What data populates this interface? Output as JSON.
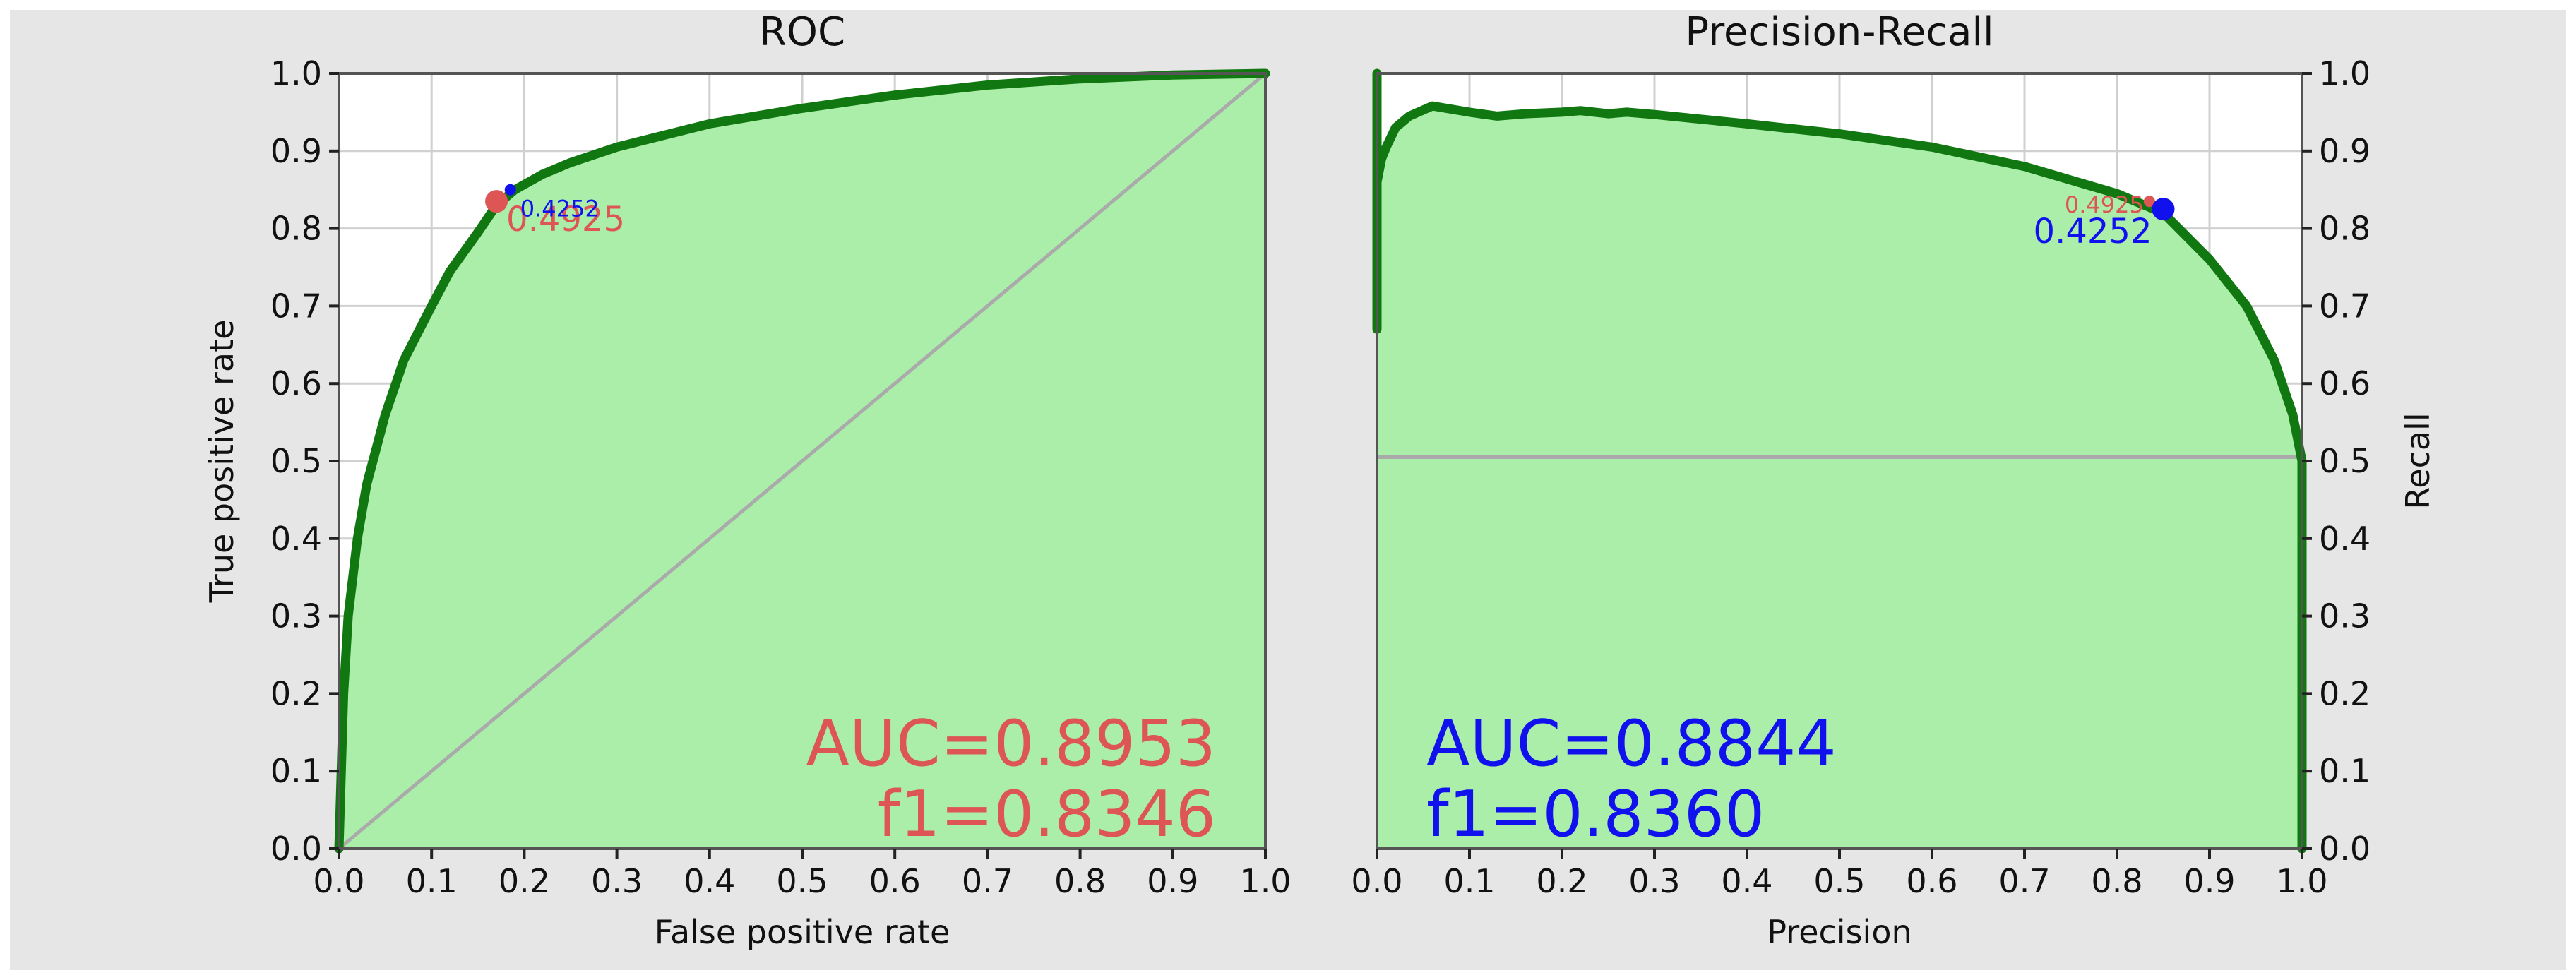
{
  "colors": {
    "figure_bg": "#e6e6e6",
    "plot_bg": "#ffffff",
    "fill": "#aaeeaa",
    "curve": "#117711",
    "grid": "#d0d0d0",
    "reference": "#aaaaaa",
    "roc_marker": "#dd5555",
    "pr_marker": "#1111ee",
    "axis_text": "#111111"
  },
  "chart_data": [
    {
      "type": "area",
      "title": "ROC",
      "xlabel": "False positive rate",
      "ylabel": "True positive rate",
      "xlim": [
        0,
        1
      ],
      "ylim": [
        0,
        1
      ],
      "grid": true,
      "xticks": [
        "0.0",
        "0.1",
        "0.2",
        "0.3",
        "0.4",
        "0.5",
        "0.6",
        "0.7",
        "0.8",
        "0.9",
        "1.0"
      ],
      "yticks": [
        "0.0",
        "0.1",
        "0.2",
        "0.3",
        "0.4",
        "0.5",
        "0.6",
        "0.7",
        "0.8",
        "0.9",
        "1.0"
      ],
      "y_axis_side": "left",
      "series": [
        {
          "x": [
            0.0,
            0.005,
            0.01,
            0.02,
            0.03,
            0.05,
            0.07,
            0.1,
            0.12,
            0.15,
            0.17,
            0.19,
            0.22,
            0.25,
            0.3,
            0.35,
            0.4,
            0.5,
            0.6,
            0.7,
            0.8,
            0.9,
            0.95,
            1.0
          ],
          "y": [
            0.0,
            0.2,
            0.3,
            0.4,
            0.47,
            0.56,
            0.63,
            0.7,
            0.745,
            0.795,
            0.83,
            0.85,
            0.87,
            0.885,
            0.905,
            0.92,
            0.935,
            0.955,
            0.972,
            0.985,
            0.993,
            0.998,
            0.999,
            1.0
          ]
        }
      ],
      "reference_line": {
        "x": [
          0,
          1
        ],
        "y": [
          0,
          1
        ]
      },
      "markers": [
        {
          "x": 0.17,
          "y": 0.835,
          "label": "0.4925",
          "color": "#dd5555",
          "size": "large"
        },
        {
          "x": 0.185,
          "y": 0.85,
          "label": "0.4252",
          "color": "#1111ee",
          "size": "small"
        }
      ],
      "annotations": {
        "auc": "AUC=0.8953",
        "f1": "f1=0.8346",
        "color": "#dd5555",
        "placement": "bottom-right"
      }
    },
    {
      "type": "area",
      "title": "Precision-Recall",
      "xlabel": "Precision",
      "ylabel": "Recall",
      "xlim": [
        0,
        1
      ],
      "ylim": [
        0,
        1
      ],
      "grid": true,
      "xticks": [
        "0.0",
        "0.1",
        "0.2",
        "0.3",
        "0.4",
        "0.5",
        "0.6",
        "0.7",
        "0.8",
        "0.9",
        "1.0"
      ],
      "yticks": [
        "0.0",
        "0.1",
        "0.2",
        "0.3",
        "0.4",
        "0.5",
        "0.6",
        "0.7",
        "0.8",
        "0.9",
        "1.0"
      ],
      "y_axis_side": "right",
      "series": [
        {
          "x": [
            0.0,
            0.0,
            0.0,
            0.005,
            0.01,
            0.02,
            0.035,
            0.06,
            0.1,
            0.13,
            0.16,
            0.2,
            0.22,
            0.25,
            0.27,
            0.3,
            0.4,
            0.5,
            0.6,
            0.7,
            0.8,
            0.85,
            0.9,
            0.94,
            0.97,
            0.99,
            1.0,
            1.0
          ],
          "y": [
            0.67,
            1.0,
            0.86,
            0.89,
            0.905,
            0.93,
            0.945,
            0.958,
            0.95,
            0.945,
            0.948,
            0.95,
            0.952,
            0.948,
            0.95,
            0.947,
            0.935,
            0.922,
            0.905,
            0.88,
            0.845,
            0.82,
            0.76,
            0.7,
            0.63,
            0.56,
            0.5,
            0.0
          ]
        }
      ],
      "reference_line": {
        "x": [
          0,
          1
        ],
        "y": [
          0.505,
          0.505
        ]
      },
      "markers": [
        {
          "x": 0.835,
          "y": 0.835,
          "label": "0.4925",
          "color": "#dd5555",
          "size": "small"
        },
        {
          "x": 0.85,
          "y": 0.825,
          "label": "0.4252",
          "color": "#1111ee",
          "size": "large"
        }
      ],
      "annotations": {
        "auc": "AUC=0.8844",
        "f1": "f1=0.8360",
        "color": "#1111ee",
        "placement": "bottom-left"
      }
    }
  ]
}
